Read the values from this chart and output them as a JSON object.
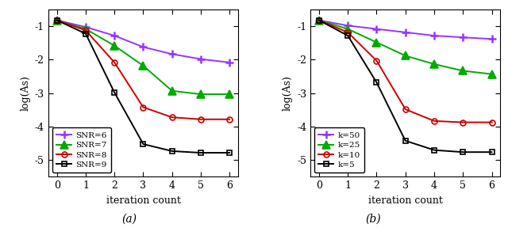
{
  "panel_a": {
    "title": "(a)",
    "xlabel": "iteration count",
    "ylabel": "log(As)",
    "xlim": [
      -0.3,
      6.3
    ],
    "ylim": [
      -5.5,
      -0.5
    ],
    "yticks": [
      -5,
      -4,
      -3,
      -2,
      -1
    ],
    "xticks": [
      0,
      1,
      2,
      3,
      4,
      5,
      6
    ],
    "series": [
      {
        "label": "SNR=6",
        "color": "#9933ff",
        "marker": "+",
        "markersize": 7,
        "markeredgewidth": 1.8,
        "linewidth": 1.4,
        "x": [
          0,
          1,
          2,
          3,
          4,
          5,
          6
        ],
        "y": [
          -0.82,
          -1.02,
          -1.28,
          -1.62,
          -1.83,
          -1.98,
          -2.08
        ]
      },
      {
        "label": "SNR=7",
        "color": "#00aa00",
        "marker": "^",
        "markersize": 7,
        "markeredgewidth": 1.2,
        "linewidth": 1.4,
        "x": [
          0,
          1,
          2,
          3,
          4,
          5,
          6
        ],
        "y": [
          -0.82,
          -1.08,
          -1.58,
          -2.18,
          -2.93,
          -3.03,
          -3.03
        ]
      },
      {
        "label": "SNR=8",
        "color": "#cc0000",
        "marker": "o",
        "markersize": 5,
        "markeredgewidth": 1.2,
        "linewidth": 1.4,
        "x": [
          0,
          1,
          2,
          3,
          4,
          5,
          6
        ],
        "y": [
          -0.82,
          -1.12,
          -2.08,
          -3.42,
          -3.72,
          -3.78,
          -3.78
        ]
      },
      {
        "label": "SNR=9",
        "color": "#000000",
        "marker": "s",
        "markersize": 5,
        "markeredgewidth": 1.2,
        "linewidth": 1.4,
        "x": [
          0,
          1,
          2,
          3,
          4,
          5,
          6
        ],
        "y": [
          -0.82,
          -1.22,
          -2.98,
          -4.52,
          -4.73,
          -4.78,
          -4.78
        ]
      }
    ]
  },
  "panel_b": {
    "title": "(b)",
    "xlabel": "iteration count",
    "ylabel": "log(As)",
    "xlim": [
      -0.3,
      6.3
    ],
    "ylim": [
      -5.5,
      -0.5
    ],
    "yticks": [
      -5,
      -4,
      -3,
      -2,
      -1
    ],
    "xticks": [
      0,
      1,
      2,
      3,
      4,
      5,
      6
    ],
    "series": [
      {
        "label": "k=50",
        "color": "#9933ff",
        "marker": "+",
        "markersize": 7,
        "markeredgewidth": 1.8,
        "linewidth": 1.4,
        "x": [
          0,
          1,
          2,
          3,
          4,
          5,
          6
        ],
        "y": [
          -0.82,
          -0.98,
          -1.08,
          -1.18,
          -1.28,
          -1.33,
          -1.38
        ]
      },
      {
        "label": "k=25",
        "color": "#00aa00",
        "marker": "^",
        "markersize": 7,
        "markeredgewidth": 1.2,
        "linewidth": 1.4,
        "x": [
          0,
          1,
          2,
          3,
          4,
          5,
          6
        ],
        "y": [
          -0.82,
          -1.08,
          -1.48,
          -1.88,
          -2.13,
          -2.33,
          -2.43
        ]
      },
      {
        "label": "k=10",
        "color": "#cc0000",
        "marker": "o",
        "markersize": 5,
        "markeredgewidth": 1.2,
        "linewidth": 1.4,
        "x": [
          0,
          1,
          2,
          3,
          4,
          5,
          6
        ],
        "y": [
          -0.82,
          -1.18,
          -2.03,
          -3.48,
          -3.83,
          -3.87,
          -3.87
        ]
      },
      {
        "label": "k=5",
        "color": "#000000",
        "marker": "s",
        "markersize": 5,
        "markeredgewidth": 1.2,
        "linewidth": 1.4,
        "x": [
          0,
          1,
          2,
          3,
          4,
          5,
          6
        ],
        "y": [
          -0.82,
          -1.28,
          -2.68,
          -4.42,
          -4.7,
          -4.76,
          -4.76
        ]
      }
    ]
  },
  "background_color": "#ffffff",
  "figure_width": 6.4,
  "figure_height": 3.02,
  "dpi": 100
}
